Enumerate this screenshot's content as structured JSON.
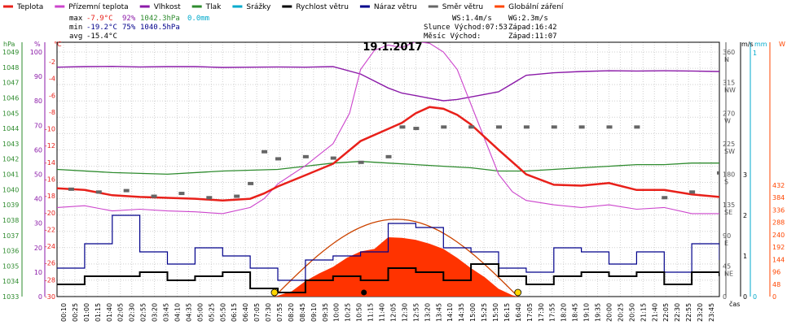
{
  "legend": [
    {
      "label": "Teplota",
      "color": "#e8201a"
    },
    {
      "label": "Přízemní teplota",
      "color": "#cc44cc"
    },
    {
      "label": "Vlhkost",
      "color": "#8b1aa8"
    },
    {
      "label": "Tlak",
      "color": "#2e8b2e"
    },
    {
      "label": "Srážky",
      "color": "#00aacc"
    },
    {
      "label": "Rychlost větru",
      "color": "#000000"
    },
    {
      "label": "Náraz větru",
      "color": "#00008b"
    },
    {
      "label": "Směr větru",
      "color": "#666666"
    },
    {
      "label": "Globální záření",
      "color": "#ff4500"
    }
  ],
  "stats": {
    "max_label": "max",
    "max_temp": "-7.9°C",
    "max_hum": "92%",
    "max_press": "1042.3hPa",
    "max_rain": "0.0mm",
    "min_label": "min",
    "min_temp": "-19.2°C",
    "min_hum": "75%",
    "min_press": "1040.5hPa",
    "avg_label": "avg",
    "avg_temp": "-15.4°C",
    "ws": "WS:1.4m/s",
    "wg": "WG:2.3m/s",
    "sun": "Slunce Východ:07:53",
    "sun_set": "Západ:16:42",
    "moon": "Měsíc  Východ:",
    "moon_set": "Západ:11:07"
  },
  "chart_data": {
    "type": "line",
    "title": "19.1.2017",
    "xlabel": "čas",
    "axes": {
      "hpa": {
        "label": "hPa",
        "ticks": [
          "1049",
          "1048",
          "1047",
          "1046",
          "1045",
          "1044",
          "1043",
          "1042",
          "1041",
          "1040",
          "1039",
          "1038",
          "1037",
          "1036",
          "1035",
          "1034",
          "1033"
        ]
      },
      "percent": {
        "label": "%",
        "ticks": [
          "100",
          "90",
          "80",
          "70",
          "60",
          "50",
          "40",
          "30",
          "20",
          "10",
          "0"
        ]
      },
      "celsius": {
        "label": "°C",
        "ticks": [
          "-2",
          "-4",
          "-6",
          "-8",
          "-10",
          "-12",
          "-14",
          "-16",
          "-18",
          "-20",
          "-22",
          "-24",
          "-26",
          "-28",
          "-30"
        ]
      },
      "direction": {
        "ticks": [
          "360",
          "315",
          "270",
          "225",
          "180",
          "135",
          "90",
          "45",
          "0"
        ],
        "names": [
          "N",
          "NW",
          "W",
          "SW",
          "S",
          "SE",
          "E",
          "NE",
          ""
        ]
      },
      "ms": {
        "label": "m/s",
        "ticks": [
          "3",
          "2",
          "1",
          "0"
        ]
      },
      "mm": {
        "label": "mm",
        "ticks": [
          "1",
          "0"
        ]
      },
      "watt": {
        "label": "W",
        "ticks": [
          "432",
          "384",
          "336",
          "288",
          "240",
          "192",
          "144",
          "96",
          "48",
          "0"
        ]
      }
    },
    "x_ticks": [
      "00:10",
      "00:25",
      "01:00",
      "01:15",
      "01:40",
      "02:05",
      "02:30",
      "02:55",
      "03:20",
      "03:45",
      "04:10",
      "04:35",
      "05:00",
      "05:25",
      "05:50",
      "06:15",
      "06:40",
      "07:05",
      "07:30",
      "07:55",
      "08:20",
      "08:45",
      "09:10",
      "09:35",
      "10:00",
      "10:25",
      "10:50",
      "11:15",
      "11:40",
      "12:05",
      "12:30",
      "12:55",
      "13:20",
      "13:45",
      "14:10",
      "14:35",
      "15:00",
      "15:25",
      "15:50",
      "16:15",
      "16:40",
      "17:05",
      "17:30",
      "17:55",
      "18:20",
      "18:45",
      "19:10",
      "19:35",
      "20:00",
      "20:25",
      "20:50",
      "21:15",
      "21:40",
      "22:05",
      "22:30",
      "22:55",
      "23:20",
      "23:45"
    ],
    "series": [
      {
        "name": "Teplota",
        "color": "#e8201a",
        "x": [
          0,
          1,
          2,
          3,
          4,
          5,
          6,
          7,
          7.5,
          8,
          9,
          10,
          11,
          12,
          12.5,
          13,
          13.5,
          14,
          14.5,
          15,
          16,
          17,
          18,
          19,
          20,
          21,
          22,
          23,
          24
        ],
        "y": [
          -17.6,
          -17.8,
          -18.4,
          -18.6,
          -18.7,
          -18.8,
          -19.0,
          -18.8,
          -18.2,
          -17.4,
          -16.1,
          -14.8,
          -12.2,
          -10.8,
          -10.1,
          -9.0,
          -8.3,
          -8.5,
          -9.2,
          -10.3,
          -13.2,
          -16.0,
          -17.2,
          -17.3,
          -17.0,
          -17.8,
          -17.8,
          -18.3,
          -18.6
        ]
      },
      {
        "name": "Přízemní teplota",
        "color": "#cc44cc",
        "x": [
          0,
          1,
          2,
          3,
          4,
          5,
          6,
          7,
          7.5,
          8,
          9,
          10,
          10.6,
          11,
          11.5,
          12,
          12.5,
          13,
          13.5,
          14,
          14.5,
          15,
          16,
          16.5,
          17,
          18,
          19,
          20,
          21,
          22,
          23,
          24
        ],
        "y": [
          -19.8,
          -19.6,
          -20.2,
          -20.0,
          -20.2,
          -20.3,
          -20.5,
          -19.8,
          -18.8,
          -17.1,
          -15.0,
          -12.5,
          -9.0,
          -4.0,
          -1.8,
          -1.2,
          -1.5,
          -0.8,
          -1.0,
          -2.0,
          -4.0,
          -8.0,
          -16.0,
          -18.0,
          -19.0,
          -19.5,
          -19.8,
          -19.5,
          -20.0,
          -19.8,
          -20.5,
          -20.5
        ]
      },
      {
        "name": "Vlhkost",
        "color": "#8b1aa8",
        "x": [
          0,
          1,
          2,
          3,
          4,
          5,
          6,
          7,
          8,
          9,
          10,
          11,
          12,
          12.5,
          13,
          13.5,
          14,
          14.5,
          15,
          16,
          17,
          18,
          19,
          20,
          21,
          22,
          23,
          24
        ],
        "y": [
          90.2,
          90.4,
          90.5,
          90.3,
          90.4,
          90.4,
          90.1,
          90.2,
          90.3,
          90.2,
          90.4,
          87.5,
          82.0,
          80.0,
          79.0,
          78.0,
          77.0,
          77.5,
          78.5,
          80.5,
          87.0,
          88.0,
          88.5,
          88.8,
          88.7,
          88.8,
          88.7,
          88.5
        ]
      },
      {
        "name": "Tlak",
        "color": "#2e8b2e",
        "x": [
          0,
          2,
          4,
          6,
          8,
          9,
          10,
          11,
          12,
          13,
          14,
          15,
          16,
          17,
          18,
          19,
          20,
          21,
          22,
          23,
          24
        ],
        "y": [
          1041.0,
          1040.8,
          1040.7,
          1040.9,
          1041.0,
          1041.2,
          1041.4,
          1041.5,
          1041.4,
          1041.3,
          1041.2,
          1041.1,
          1040.9,
          1040.9,
          1041.0,
          1041.1,
          1041.2,
          1041.3,
          1041.3,
          1041.4,
          1041.4
        ]
      },
      {
        "name": "Směr větru",
        "color": "#666666",
        "x": [
          0.5,
          1.5,
          2.5,
          3.5,
          4.5,
          5.5,
          6.5,
          7,
          7.5,
          8,
          9,
          10,
          11,
          12,
          12.5,
          13,
          14,
          15,
          16,
          17,
          18,
          19,
          20,
          21,
          22,
          23,
          24
        ],
        "y": [
          152,
          148,
          150,
          142,
          146,
          140,
          142,
          160,
          205,
          195,
          198,
          196,
          190,
          198,
          240,
          238,
          240,
          240,
          240,
          240,
          240,
          240,
          240,
          240,
          140,
          148,
          175
        ]
      },
      {
        "name": "Rychlost větru",
        "color": "#000000",
        "x": [
          0,
          1,
          2,
          3,
          4,
          5,
          6,
          7,
          8,
          9,
          10,
          11,
          12,
          13,
          14,
          15,
          16,
          17,
          18,
          19,
          20,
          21,
          22,
          23,
          24
        ],
        "y": [
          0.3,
          0.5,
          0.5,
          0.6,
          0.4,
          0.5,
          0.6,
          0.2,
          0.1,
          0.4,
          0.5,
          0.4,
          0.7,
          0.6,
          0.4,
          0.8,
          0.5,
          0.3,
          0.5,
          0.6,
          0.5,
          0.6,
          0.3,
          0.6,
          0.5
        ]
      },
      {
        "name": "Náraz větru",
        "color": "#00008b",
        "x": [
          0,
          1,
          2,
          3,
          4,
          5,
          6,
          7,
          8,
          9,
          10,
          11,
          12,
          13,
          14,
          15,
          16,
          17,
          18,
          19,
          20,
          21,
          22,
          23,
          24
        ],
        "y": [
          0.7,
          1.3,
          2.0,
          1.1,
          0.8,
          1.2,
          1.0,
          0.7,
          0.4,
          0.9,
          1.0,
          1.1,
          1.8,
          1.7,
          1.2,
          1.1,
          0.7,
          0.6,
          1.2,
          1.1,
          0.8,
          1.1,
          0.6,
          1.3,
          0.9
        ]
      },
      {
        "name": "Globální záření",
        "color": "#ff4500",
        "x": [
          7.9,
          8.5,
          9,
          9.5,
          10,
          10.5,
          11,
          11.5,
          12,
          12.5,
          13,
          13.5,
          14,
          14.5,
          15,
          15.5,
          16,
          16.5,
          16.7
        ],
        "y": [
          0,
          20,
          60,
          90,
          115,
          150,
          175,
          185,
          230,
          228,
          220,
          205,
          185,
          150,
          110,
          75,
          30,
          5,
          0
        ]
      }
    ],
    "sun_rise": 7.88,
    "sun_set": 16.7,
    "moon_set": 11.12
  }
}
